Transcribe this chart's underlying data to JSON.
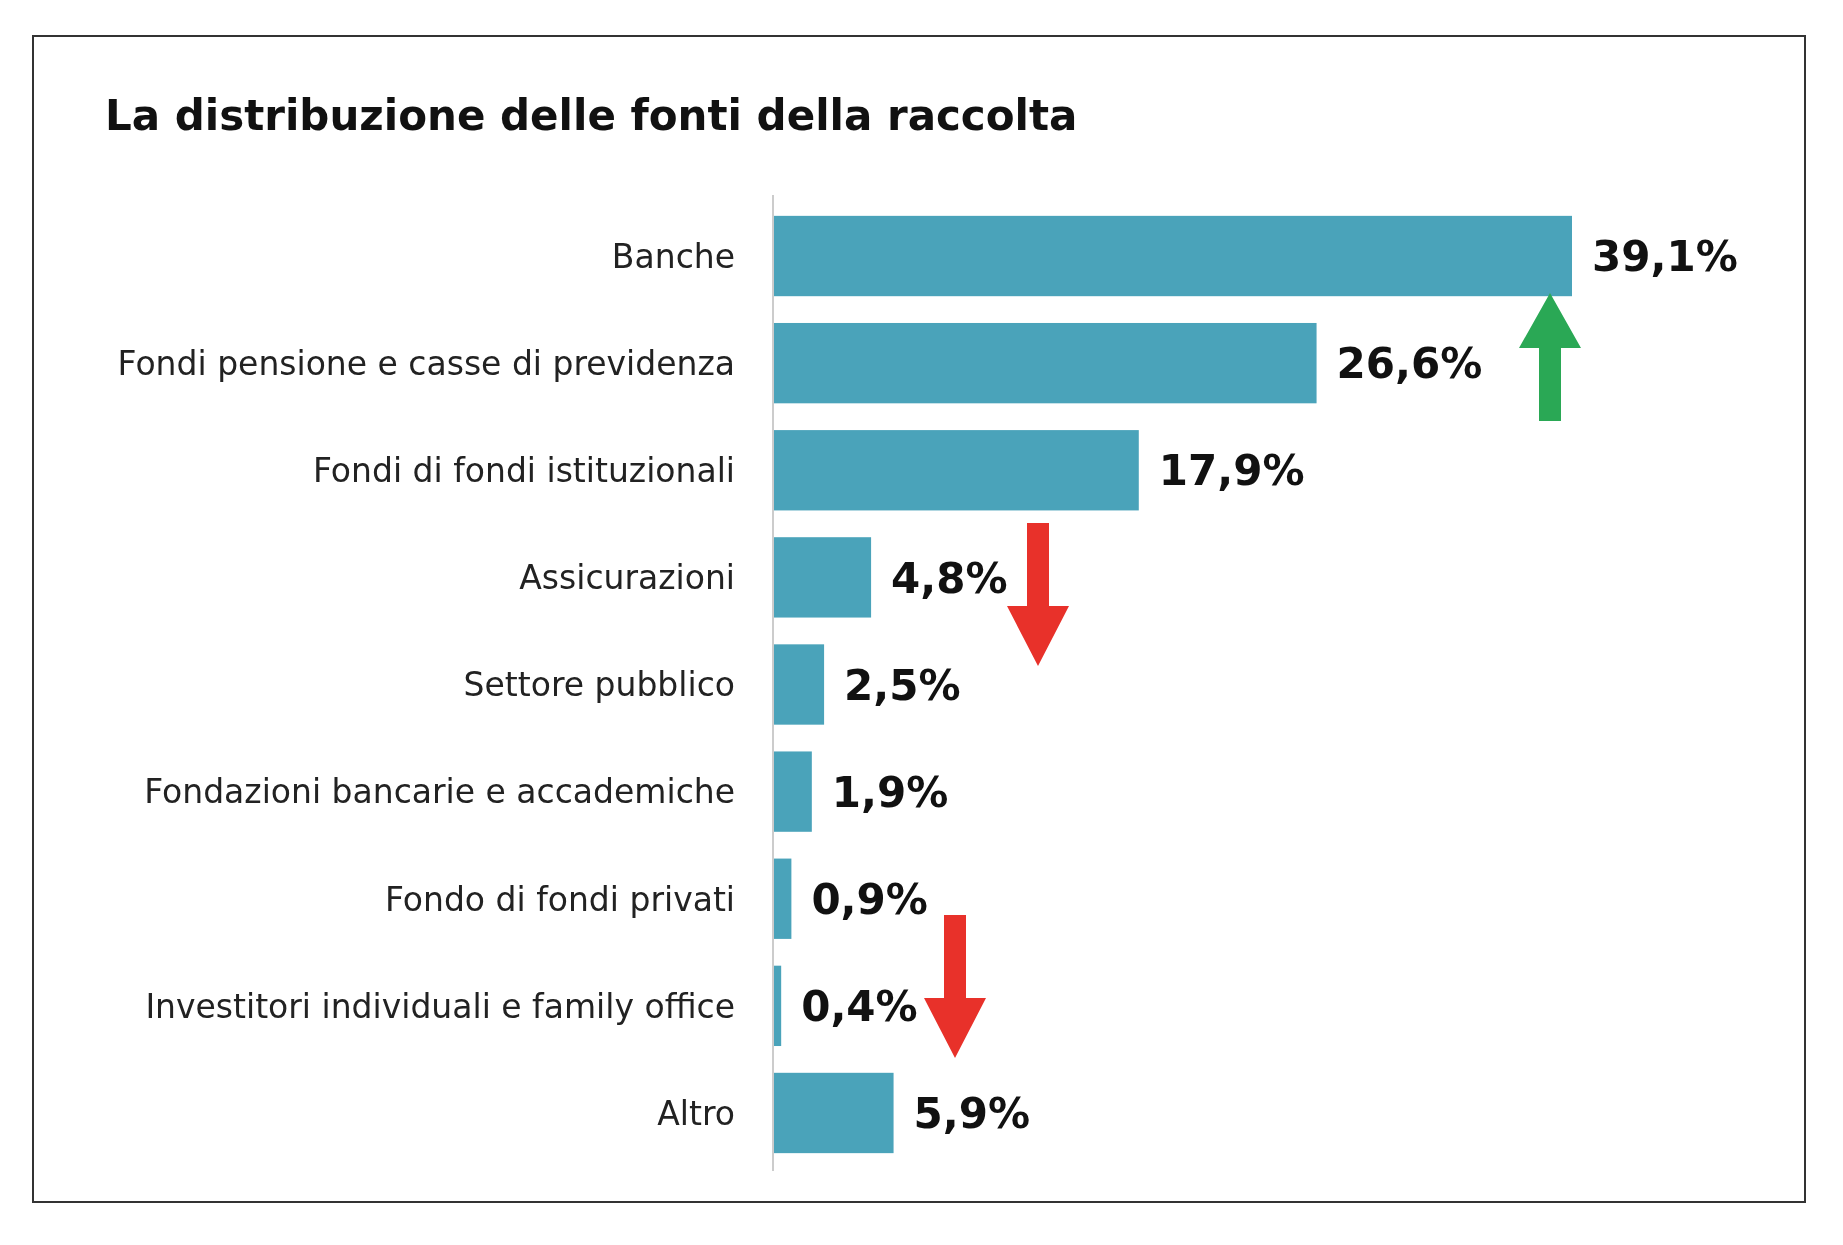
{
  "chart_data": {
    "type": "bar",
    "orientation": "horizontal",
    "title": "La distribuzione delle fonti della raccolta",
    "categories": [
      "Banche",
      "Fondi pensione e casse di previdenza",
      "Fondi di fondi istituzionali",
      "Assicurazioni",
      "Settore pubblico",
      "Fondazioni bancarie e accademiche",
      "Fondo di fondi privati",
      "Investitori individuali e family office",
      "Altro"
    ],
    "values": [
      39.1,
      26.6,
      17.9,
      4.8,
      2.5,
      1.9,
      0.9,
      0.4,
      5.9
    ],
    "value_labels": [
      "39,1%",
      "26,6%",
      "17,9%",
      "4,8%",
      "2,5%",
      "1,9%",
      "0,9%",
      "0,4%",
      "5,9%"
    ],
    "color": "#4aa3ba",
    "tick_labels": "y"
  }
}
